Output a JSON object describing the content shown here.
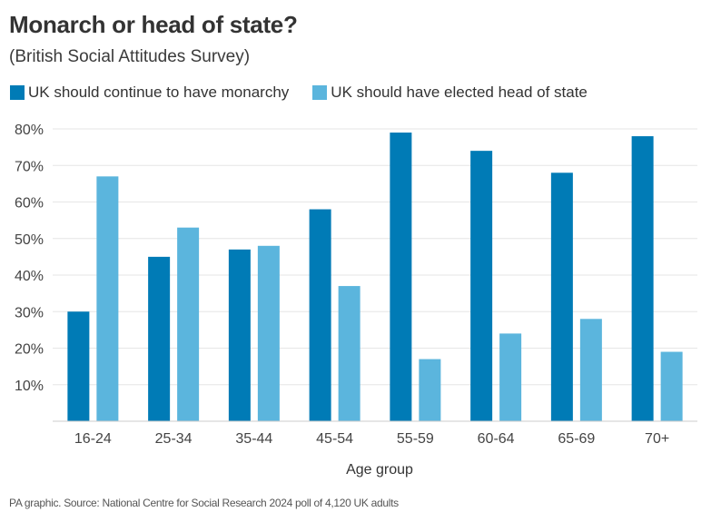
{
  "chart_data": {
    "type": "bar",
    "title": "Monarch or head of state?",
    "subtitle": "(British Social Attitudes Survey)",
    "xlabel": "Age group",
    "ylabel": "",
    "categories": [
      "16-24",
      "25-34",
      "35-44",
      "45-54",
      "55-59",
      "60-64",
      "65-69",
      "70+"
    ],
    "series": [
      {
        "name": "UK should continue to have monarchy",
        "color": "#007bb6",
        "values": [
          30,
          45,
          47,
          58,
          79,
          74,
          68,
          78
        ]
      },
      {
        "name": "UK should have elected head of state",
        "color": "#5bb5dd",
        "values": [
          67,
          53,
          48,
          37,
          17,
          24,
          28,
          19
        ]
      }
    ],
    "ylim": [
      0,
      80
    ],
    "yticks": [
      10,
      20,
      30,
      40,
      50,
      60,
      70,
      80
    ],
    "ytick_labels": [
      "10%",
      "20%",
      "30%",
      "40%",
      "50%",
      "60%",
      "70%",
      "80%"
    ],
    "grid": true,
    "legend_position": "top-left",
    "source": "PA graphic. Source: National Centre for Social Research 2024 poll of 4,120 UK adults"
  }
}
